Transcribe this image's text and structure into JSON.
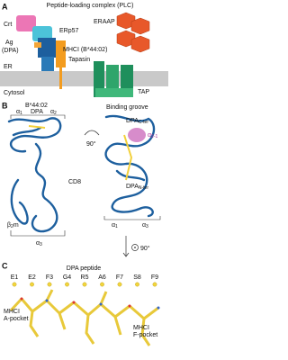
{
  "panels": {
    "a": {
      "label": "A",
      "title": "Peptide-loading complex (PLC)",
      "eraap": "ERAAP",
      "crt": "Crt",
      "erp57": "ERp57",
      "ag": "Ag",
      "dpa": "(DPA)",
      "mhci": "MHCI (B*44:02)",
      "tapasin": "Tapasin",
      "er": "ER",
      "cytosol": "Cytosol",
      "tap": "TAP"
    },
    "b": {
      "label": "B",
      "allele": "B*44:02",
      "alpha1_top": {
        "base": "α",
        "sub": "1"
      },
      "dpa": "DPA",
      "alpha2_top": {
        "base": "α",
        "sub": "2"
      },
      "rotation1": "90°",
      "cd8": "CD8",
      "b2m": {
        "base": "β",
        "sub": "2",
        "tail": "m"
      },
      "alpha3_left": {
        "base": "α",
        "sub": "3"
      },
      "groove_title": "Binding groove",
      "dpa_c": {
        "base": "DPA",
        "sub": "C-ter"
      },
      "alpha2_1": {
        "base": "α",
        "sub": "2-1"
      },
      "dpa_n": {
        "base": "DPA",
        "sub": "N-ter"
      },
      "alpha1_right": {
        "base": "α",
        "sub": "1"
      },
      "alpha3_right": {
        "base": "α",
        "sub": "3"
      },
      "rotation2": "90°"
    },
    "c": {
      "label": "C",
      "title": "DPA peptide",
      "residues": [
        "E1",
        "E2",
        "F3",
        "G4",
        "R5",
        "A6",
        "F7",
        "S8",
        "F9"
      ],
      "a_pocket": [
        "MHCI",
        "A-pocket"
      ],
      "f_pocket": [
        "MHCI",
        "F-pocket"
      ]
    }
  }
}
